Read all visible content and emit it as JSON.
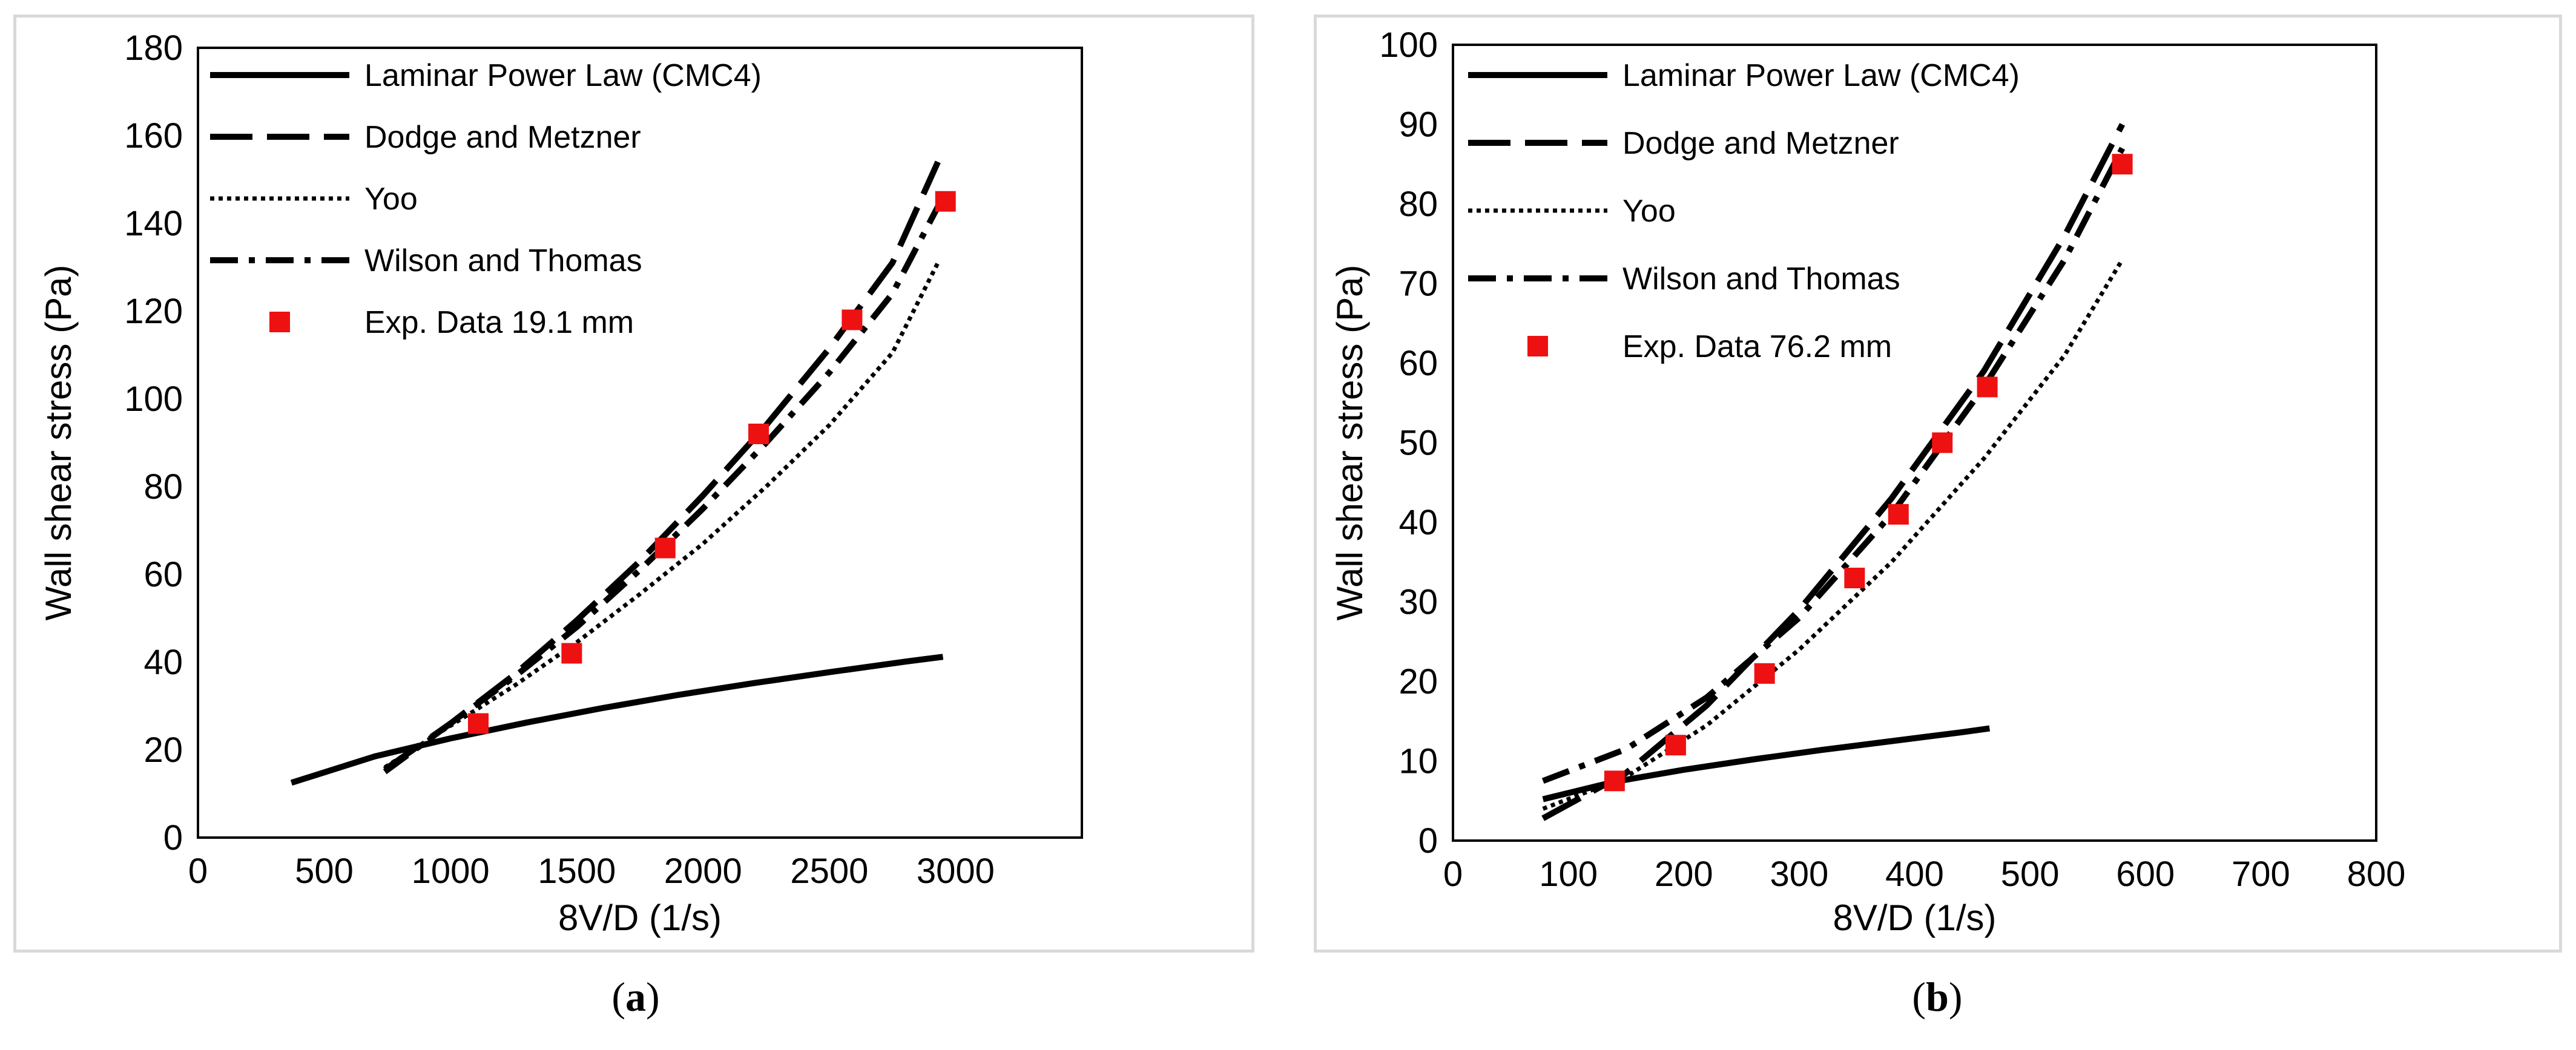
{
  "chart_data": [
    {
      "id": "a",
      "type": "line",
      "caption_letter": "a",
      "xlabel": "8V/D (1/s)",
      "ylabel": "Wall shear stress (Pa)",
      "xlim": [
        0,
        3500
      ],
      "ylim": [
        0,
        180
      ],
      "xticks": [
        0,
        500,
        1000,
        1500,
        2000,
        2500,
        3000
      ],
      "yticks": [
        0,
        20,
        40,
        60,
        80,
        100,
        120,
        140,
        160,
        180
      ],
      "grid": false,
      "legend_position": "top-left",
      "series": [
        {
          "name": "Laminar Power Law (CMC4)",
          "style": "solid",
          "x": [
            370,
            700,
            1000,
            1300,
            1600,
            1900,
            2200,
            2500,
            2800,
            2950
          ],
          "y": [
            12.5,
            18.5,
            22.6,
            26.2,
            29.5,
            32.5,
            35.2,
            37.7,
            40.1,
            41.2
          ]
        },
        {
          "name": "Dodge and Metzner",
          "style": "dash",
          "x": [
            740,
            1000,
            1250,
            1500,
            1750,
            2000,
            2250,
            2500,
            2750,
            2930
          ],
          "y": [
            15.5,
            26,
            37,
            49.5,
            63,
            78,
            94,
            111.5,
            131,
            154
          ]
        },
        {
          "name": "Yoo",
          "style": "dot",
          "x": [
            740,
            1000,
            1250,
            1500,
            1750,
            2000,
            2250,
            2500,
            2750,
            2930
          ],
          "y": [
            16,
            25.5,
            34.5,
            44.5,
            55.5,
            67,
            80,
            94,
            110.5,
            131
          ]
        },
        {
          "name": "Wilson and Thomas",
          "style": "dashdot",
          "x": [
            740,
            1000,
            1250,
            1500,
            1750,
            2000,
            2250,
            2500,
            2750,
            2950
          ],
          "y": [
            15,
            26,
            36.5,
            48,
            61,
            75,
            90,
            106,
            124,
            146
          ]
        },
        {
          "name": "Exp. Data 19.1 mm",
          "style": "marker",
          "x": [
            1110,
            1480,
            1850,
            2220,
            2590,
            2960
          ],
          "y": [
            26,
            42,
            66,
            92,
            118,
            145
          ]
        }
      ]
    },
    {
      "id": "b",
      "type": "line",
      "caption_letter": "b",
      "xlabel": "8V/D (1/s)",
      "ylabel": "Wall shear stress (Pa)",
      "xlim": [
        0,
        800
      ],
      "ylim": [
        0,
        100
      ],
      "xticks": [
        0,
        100,
        200,
        300,
        400,
        500,
        600,
        700,
        800
      ],
      "yticks": [
        0,
        10,
        20,
        30,
        40,
        50,
        60,
        70,
        80,
        90,
        100
      ],
      "grid": false,
      "legend_position": "top-left",
      "series": [
        {
          "name": "Laminar Power Law (CMC4)",
          "style": "solid",
          "x": [
            78,
            140,
            200,
            260,
            320,
            380,
            440,
            465
          ],
          "y": [
            5.2,
            7.4,
            8.9,
            10.2,
            11.4,
            12.5,
            13.6,
            14.1
          ]
        },
        {
          "name": "Dodge and Metzner",
          "style": "dash",
          "x": [
            78,
            150,
            220,
            300,
            380,
            460,
            530,
            580
          ],
          "y": [
            2.8,
            8.5,
            17,
            29,
            43,
            59,
            76,
            90
          ]
        },
        {
          "name": "Yoo",
          "style": "dot",
          "x": [
            78,
            150,
            220,
            300,
            380,
            460,
            530,
            580
          ],
          "y": [
            4,
            8,
            14.5,
            24,
            35,
            48,
            61,
            73
          ]
        },
        {
          "name": "Wilson and Thomas",
          "style": "dashdot",
          "x": [
            78,
            150,
            220,
            300,
            380,
            460,
            530,
            580
          ],
          "y": [
            7.5,
            11.5,
            18,
            28,
            41,
            57,
            73,
            87
          ]
        },
        {
          "name": "Exp. Data 76.2 mm",
          "style": "marker",
          "x": [
            140,
            193,
            270,
            348,
            386,
            424,
            463,
            580
          ],
          "y": [
            7.5,
            12,
            21,
            33,
            41,
            50,
            57,
            85
          ]
        }
      ]
    }
  ],
  "captions": {
    "a": "a",
    "b": "b"
  }
}
